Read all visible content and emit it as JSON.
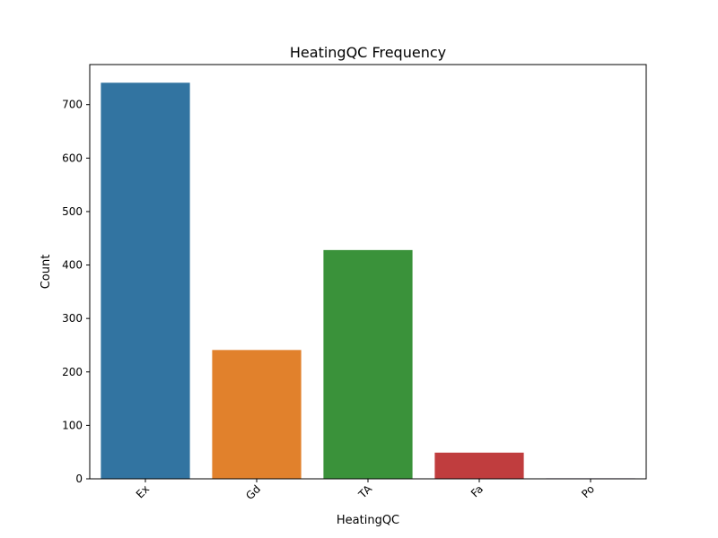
{
  "chart_data": {
    "type": "bar",
    "title": "HeatingQC Frequency",
    "xlabel": "HeatingQC",
    "ylabel": "Count",
    "categories": [
      "Ex",
      "Gd",
      "TA",
      "Fa",
      "Po"
    ],
    "values": [
      741,
      241,
      428,
      49,
      1
    ],
    "colors": [
      "#3274a1",
      "#e1812c",
      "#3a923a",
      "#c03d3e",
      "#9372b2"
    ],
    "ylim": [
      0,
      775
    ],
    "yticks": [
      0,
      100,
      200,
      300,
      400,
      500,
      600,
      700
    ],
    "grid": false,
    "legend": "none",
    "x_tick_rotation": -45
  }
}
